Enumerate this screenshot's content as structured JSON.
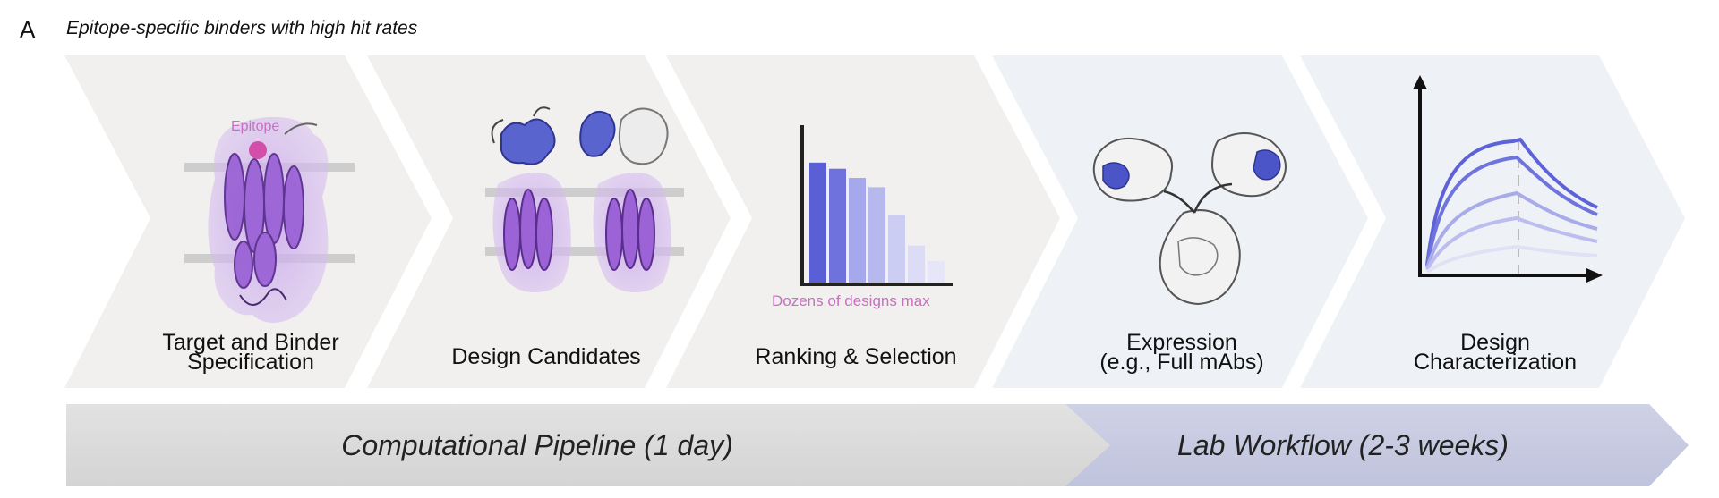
{
  "panel": {
    "letter": "A",
    "title": "Epitope-specific binders with high hit rates"
  },
  "steps": [
    {
      "id": "target",
      "label": "Target and Binder\nSpecification",
      "annotation": "Epitope"
    },
    {
      "id": "candidates",
      "label": "Design Candidates"
    },
    {
      "id": "ranking",
      "label": "Ranking & Selection",
      "annotation": "Dozens of designs max"
    },
    {
      "id": "expression",
      "label": "Expression\n(e.g., Full mAbs)"
    },
    {
      "id": "characterization",
      "label": "Design\nCharacterization"
    }
  ],
  "phases": [
    {
      "label": "Computational Pipeline (1 day)"
    },
    {
      "label": "Lab Workflow (2-3 weeks)"
    }
  ],
  "ranking_bars": [
    0.78,
    0.74,
    0.68,
    0.62,
    0.44,
    0.24,
    0.14
  ],
  "colors": {
    "computational_chevron": "#f1f0ee",
    "lab_chevron": "#eef1f6",
    "computational_bar": "#dcdcdc",
    "lab_bar": "#c8cbe0",
    "protein_purple": "#8e55c9",
    "binder_blue": "#4b55c8",
    "epitope_pink": "#c86fc4"
  }
}
